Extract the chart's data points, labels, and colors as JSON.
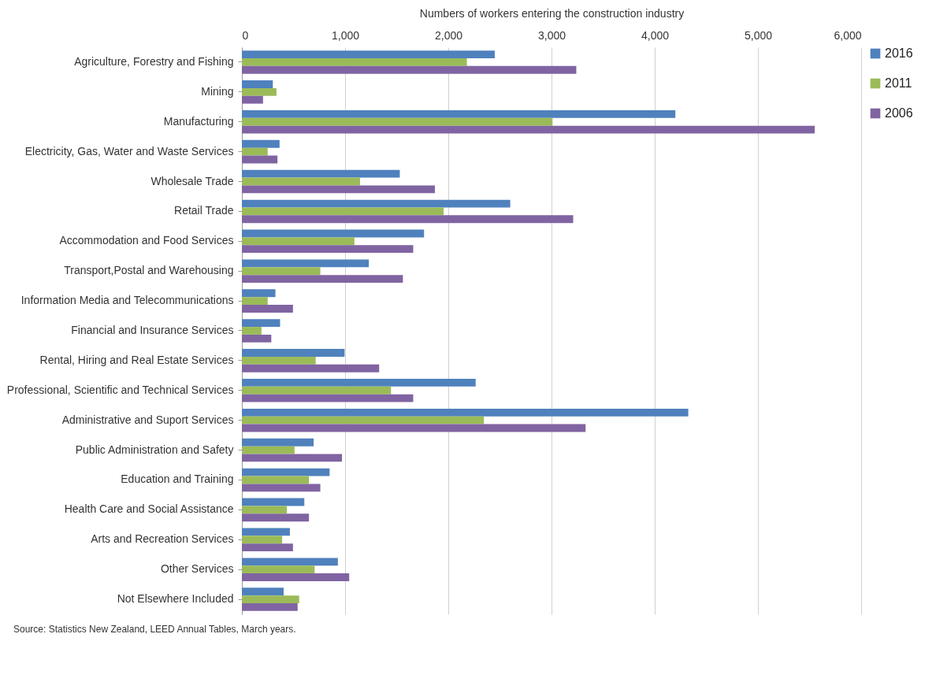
{
  "chart_data": {
    "type": "bar",
    "orientation": "horizontal",
    "xlabel": "Numbers of workers entering the construction industry",
    "categories": [
      "Agriculture, Forestry and Fishing",
      "Mining",
      "Manufacturing",
      "Electricity, Gas, Water and Waste Services",
      "Wholesale Trade",
      "Retail Trade",
      "Accommodation and Food Services",
      "Transport,Postal and Warehousing",
      "Information Media and Telecommunications",
      "Financial and Insurance Services",
      "Rental, Hiring and Real Estate Services",
      "Professional, Scientific and Technical Services",
      "Administrative and Suport Services",
      "Public Administration and Safety",
      "Education and Training",
      "Health Care and Social Assistance",
      "Arts and Recreation Services",
      "Other Services",
      "Not Elsewhere Included"
    ],
    "series": [
      {
        "name": "2016",
        "color": "#4f81bd",
        "values": [
          2450,
          300,
          4200,
          365,
          1530,
          2600,
          1765,
          1230,
          325,
          370,
          995,
          2265,
          4325,
          695,
          850,
          605,
          465,
          930,
          405
        ]
      },
      {
        "name": "2011",
        "color": "#9bbb59",
        "values": [
          2180,
          335,
          3010,
          250,
          1145,
          1955,
          1090,
          760,
          250,
          190,
          715,
          1445,
          2345,
          510,
          650,
          435,
          390,
          705,
          555
        ]
      },
      {
        "name": "2006",
        "color": "#8064a2",
        "values": [
          3240,
          205,
          5550,
          345,
          1870,
          3210,
          1660,
          1560,
          495,
          285,
          1330,
          1660,
          3330,
          970,
          760,
          650,
          495,
          1040,
          540
        ]
      }
    ],
    "xlim": [
      0,
      6000
    ],
    "xticks": [
      0,
      {
        "value": 1000,
        "label": "1,000"
      },
      {
        "value": 2000,
        "label": "2,000"
      },
      {
        "value": 3000,
        "label": "3,000"
      },
      {
        "value": 4000,
        "label": "4,000"
      },
      {
        "value": 5000,
        "label": "5,000"
      },
      {
        "value": 6000,
        "label": "6,000"
      }
    ],
    "grid": "x",
    "legend": "right",
    "annotations": [
      "Source:  Statistics New Zealand, LEED Annual Tables,  March years."
    ]
  }
}
